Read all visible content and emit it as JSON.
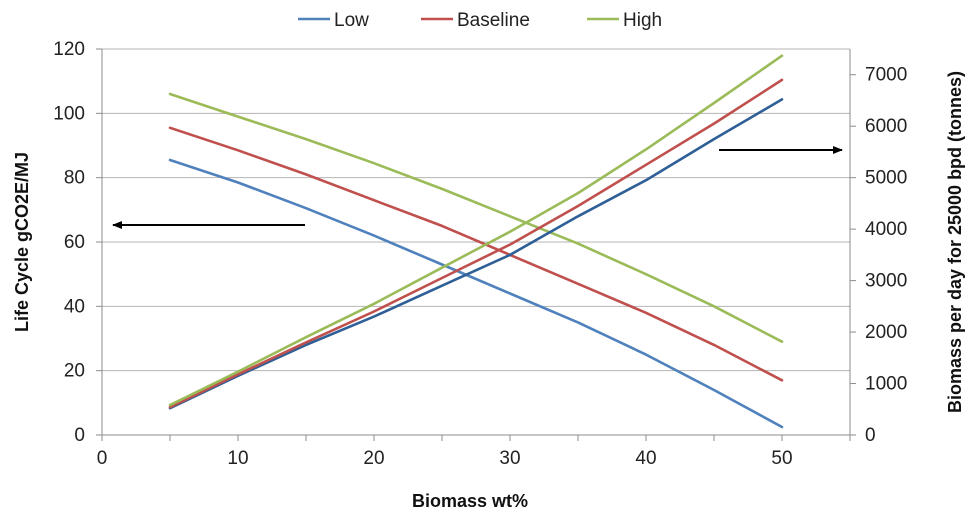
{
  "chart_data": {
    "type": "line",
    "xlabel": "Biomass wt%",
    "ylabel_left": "Life Cycle gCO2E/MJ",
    "ylabel_right": "Biomass per day for 25000 bpd (tonnes)",
    "xlim": [
      0,
      55
    ],
    "ylim_left": [
      0,
      120
    ],
    "ylim_right": [
      0,
      7500
    ],
    "x_ticks": [
      0,
      10,
      20,
      30,
      40,
      50
    ],
    "y_left_ticks": [
      0,
      20,
      40,
      60,
      80,
      100,
      120
    ],
    "y_right_ticks": [
      0,
      1000,
      2000,
      3000,
      4000,
      5000,
      6000,
      7000
    ],
    "grid": true,
    "legend_position": "top-center",
    "legend": [
      {
        "name": "Low",
        "color": "#4f81bd"
      },
      {
        "name": "Baseline",
        "color": "#c0504d"
      },
      {
        "name": "High",
        "color": "#9bbb59"
      }
    ],
    "series": [
      {
        "name": "Low",
        "axis": "left",
        "color": "#4f81bd",
        "x": [
          5,
          10,
          15,
          20,
          25,
          30,
          35,
          40,
          45,
          50
        ],
        "values": [
          85.5,
          78.5,
          70.5,
          62,
          53,
          44,
          35,
          25,
          14,
          2.5
        ]
      },
      {
        "name": "Baseline",
        "axis": "left",
        "color": "#c0504d",
        "x": [
          5,
          10,
          15,
          20,
          25,
          30,
          35,
          40,
          45,
          50
        ],
        "values": [
          95.5,
          88.5,
          81,
          73,
          65,
          56,
          47,
          38,
          28,
          17
        ]
      },
      {
        "name": "High",
        "axis": "left",
        "color": "#9bbb59",
        "x": [
          5,
          10,
          15,
          20,
          25,
          30,
          35,
          40,
          45,
          50
        ],
        "values": [
          106,
          99,
          92,
          84.5,
          76.5,
          68,
          59.5,
          50,
          40,
          29
        ]
      },
      {
        "name": "Low",
        "axis": "right",
        "color": "#2e5f97",
        "x": [
          5,
          10,
          15,
          20,
          25,
          30,
          35,
          40,
          45,
          50
        ],
        "values": [
          520,
          1150,
          1750,
          2300,
          2900,
          3500,
          4250,
          4950,
          5750,
          6520
        ]
      },
      {
        "name": "Baseline",
        "axis": "right",
        "color": "#c0504d",
        "x": [
          5,
          10,
          15,
          20,
          25,
          30,
          35,
          40,
          45,
          50
        ],
        "values": [
          540,
          1180,
          1800,
          2400,
          3050,
          3700,
          4450,
          5250,
          6050,
          6900
        ]
      },
      {
        "name": "High",
        "axis": "right",
        "color": "#9bbb59",
        "x": [
          5,
          10,
          15,
          20,
          25,
          30,
          35,
          40,
          45,
          50
        ],
        "values": [
          580,
          1230,
          1900,
          2550,
          3250,
          3950,
          4700,
          5550,
          6450,
          7370
        ]
      }
    ],
    "annotations": [
      {
        "type": "arrow",
        "direction": "left",
        "points_to": "left axis"
      },
      {
        "type": "arrow",
        "direction": "right",
        "points_to": "right axis"
      }
    ]
  }
}
